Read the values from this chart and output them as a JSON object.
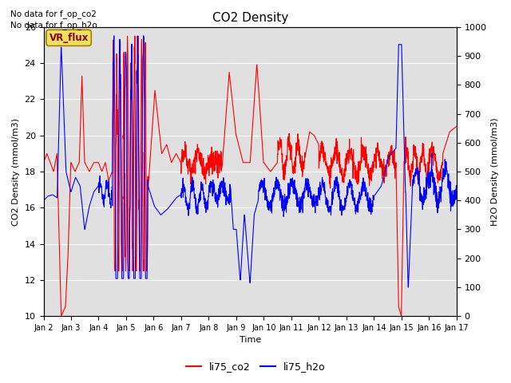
{
  "title": "CO2 Density",
  "xlabel": "Time",
  "ylabel_left": "CO2 Density (mmol/m3)",
  "ylabel_right": "H2O Density (mmol/m3)",
  "ylim_left": [
    10,
    26
  ],
  "ylim_right": [
    0,
    1000
  ],
  "no_data_text1": "No data for f_op_co2",
  "no_data_text2": "No data for f_op_h2o",
  "vr_flux_label": "VR_flux",
  "legend_labels": [
    "li75_co2",
    "li75_h2o"
  ],
  "line_colors": [
    "red",
    "blue"
  ],
  "bg_color": "#e0e0e0",
  "fig_width": 6.4,
  "fig_height": 4.8,
  "dpi": 100,
  "xtick_labels": [
    "Jan 2",
    "Jan 3",
    "Jan 4",
    "Jan 5",
    "Jan 6",
    "Jan 7",
    "Jan 8",
    "Jan 9",
    "Jan 10",
    "Jan 11",
    "Jan 12",
    "Jan 13",
    "Jan 14",
    "Jan 15",
    "Jan 16",
    "Jan 17"
  ],
  "n_points": 2000
}
